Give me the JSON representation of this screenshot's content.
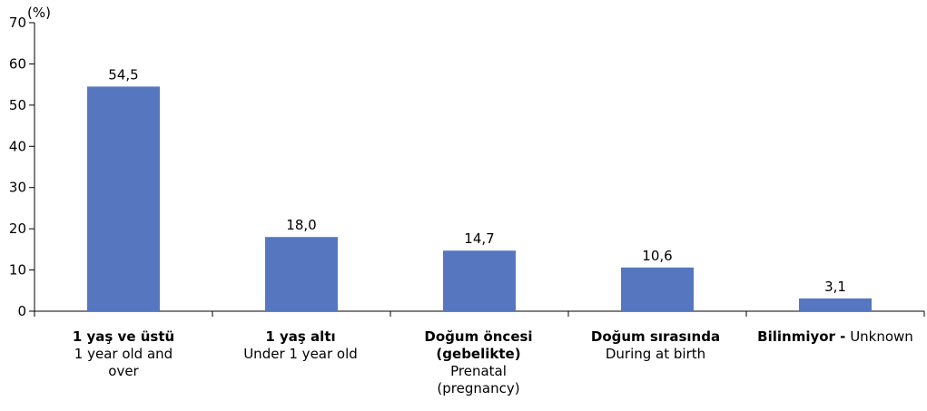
{
  "chart_data": {
    "type": "bar",
    "yunit": "(%)",
    "ylim": [
      0,
      70
    ],
    "yticks": [
      0,
      10,
      20,
      30,
      40,
      50,
      60,
      70
    ],
    "grid": false,
    "bar_color": "#5677c0",
    "categories": [
      {
        "tr": "1 yaş ve üstü",
        "en": "1 year old and over"
      },
      {
        "tr": "1 yaş altı",
        "en": "Under 1 year old"
      },
      {
        "tr": "Doğum öncesi (gebelikte)",
        "en": "Prenatal (pregnancy)"
      },
      {
        "tr": "Doğum sırasında",
        "en": "During at birth"
      },
      {
        "tr": "Bilinmiyor -",
        "en": "Unknown"
      }
    ],
    "values": [
      54.5,
      18.0,
      14.7,
      10.6,
      3.1
    ],
    "value_labels": [
      "54,5",
      "18,0",
      "14,7",
      "10,6",
      "3,1"
    ]
  }
}
